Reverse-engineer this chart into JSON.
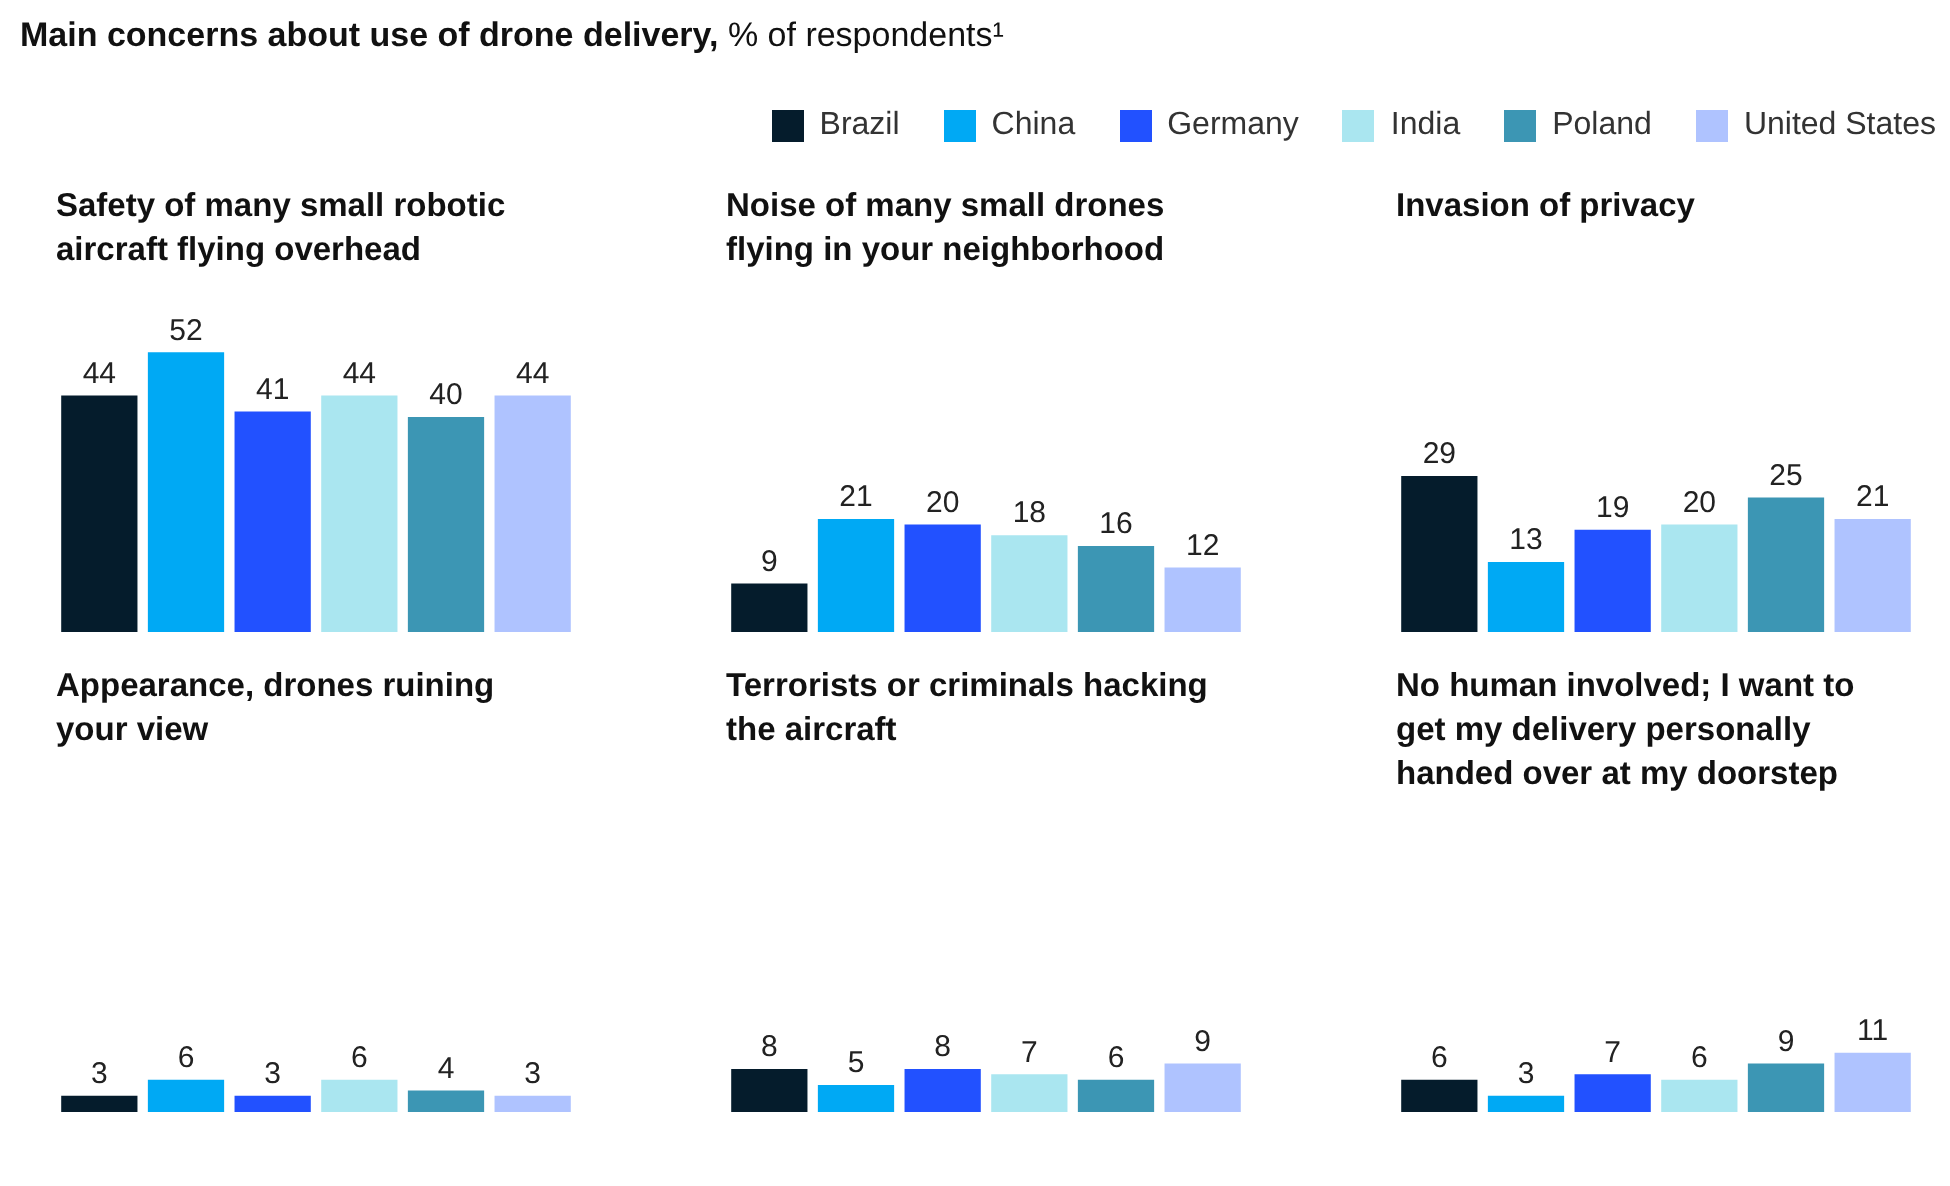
{
  "chart_data": [
    {
      "type": "other",
      "title": "Main concerns about use of drone delivery,",
      "subtitle": "% of respondents¹"
    },
    {
      "type": "bar",
      "title": "Safety of many small robotic aircraft flying overhead",
      "categories": [
        null
      ],
      "legend": "top right",
      "data_labels": true,
      "series": [
        {
          "name": "Brazil",
          "color": "#051c2c",
          "values": [
            44
          ]
        },
        {
          "name": "China",
          "color": "#00a9f4",
          "values": [
            52
          ]
        },
        {
          "name": "Germany",
          "color": "#2251ff",
          "values": [
            41
          ]
        },
        {
          "name": "India",
          "color": "#aae6f0",
          "values": [
            44
          ]
        },
        {
          "name": "Poland",
          "color": "#3c96b4",
          "values": [
            40
          ]
        },
        {
          "name": "United States",
          "color": "#afc3ff",
          "values": [
            44
          ]
        }
      ]
    },
    {
      "type": "bar",
      "title": "Noise of many small drones flying in your neighborhood",
      "categories": [
        null
      ],
      "data_labels": true,
      "series": [
        {
          "color": "#051c2c",
          "values": [
            9
          ]
        },
        {
          "color": "#00a9f4",
          "values": [
            21
          ]
        },
        {
          "color": "#2251ff",
          "values": [
            20
          ]
        },
        {
          "color": "#aae6f0",
          "values": [
            18
          ]
        },
        {
          "color": "#3c96b4",
          "values": [
            16
          ]
        },
        {
          "color": "#afc3ff",
          "values": [
            12
          ]
        }
      ]
    },
    {
      "type": "bar",
      "title": "Invasion of privacy",
      "categories": [
        null
      ],
      "data_labels": true,
      "series": [
        {
          "color": "#051c2c",
          "values": [
            29
          ]
        },
        {
          "color": "#00a9f4",
          "values": [
            13
          ]
        },
        {
          "color": "#2251ff",
          "values": [
            19
          ]
        },
        {
          "color": "#aae6f0",
          "values": [
            20
          ]
        },
        {
          "color": "#3c96b4",
          "values": [
            25
          ]
        },
        {
          "color": "#afc3ff",
          "values": [
            21
          ]
        }
      ]
    },
    {
      "type": "bar",
      "title": "Appearance, drones ruining your view",
      "categories": [
        null
      ],
      "data_labels": true,
      "series": [
        {
          "color": "#051c2c",
          "values": [
            3
          ]
        },
        {
          "color": "#00a9f4",
          "values": [
            6
          ]
        },
        {
          "color": "#2251ff",
          "values": [
            3
          ]
        },
        {
          "color": "#aae6f0",
          "values": [
            6
          ]
        },
        {
          "color": "#3c96b4",
          "values": [
            4
          ]
        },
        {
          "color": "#afc3ff",
          "values": [
            3
          ]
        }
      ]
    },
    {
      "type": "bar",
      "title": "Terrorists or criminals hacking the aircraft",
      "categories": [
        null
      ],
      "data_labels": true,
      "series": [
        {
          "color": "#051c2c",
          "values": [
            8
          ]
        },
        {
          "color": "#00a9f4",
          "values": [
            5
          ]
        },
        {
          "color": "#2251ff",
          "values": [
            8
          ]
        },
        {
          "color": "#aae6f0",
          "values": [
            7
          ]
        },
        {
          "color": "#3c96b4",
          "values": [
            6
          ]
        },
        {
          "color": "#afc3ff",
          "values": [
            9
          ]
        }
      ]
    },
    {
      "type": "bar",
      "title": "No human involved; I want to get my delivery personally handed over at my doorstep",
      "categories": [
        null
      ],
      "data_labels": true,
      "series": [
        {
          "color": "#051c2c",
          "values": [
            6
          ]
        },
        {
          "color": "#00a9f4",
          "values": [
            3
          ]
        },
        {
          "color": "#2251ff",
          "values": [
            7
          ]
        },
        {
          "color": "#aae6f0",
          "values": [
            6
          ]
        },
        {
          "color": "#3c96b4",
          "values": [
            9
          ]
        },
        {
          "color": "#afc3ff",
          "values": [
            11
          ]
        }
      ]
    }
  ]
}
